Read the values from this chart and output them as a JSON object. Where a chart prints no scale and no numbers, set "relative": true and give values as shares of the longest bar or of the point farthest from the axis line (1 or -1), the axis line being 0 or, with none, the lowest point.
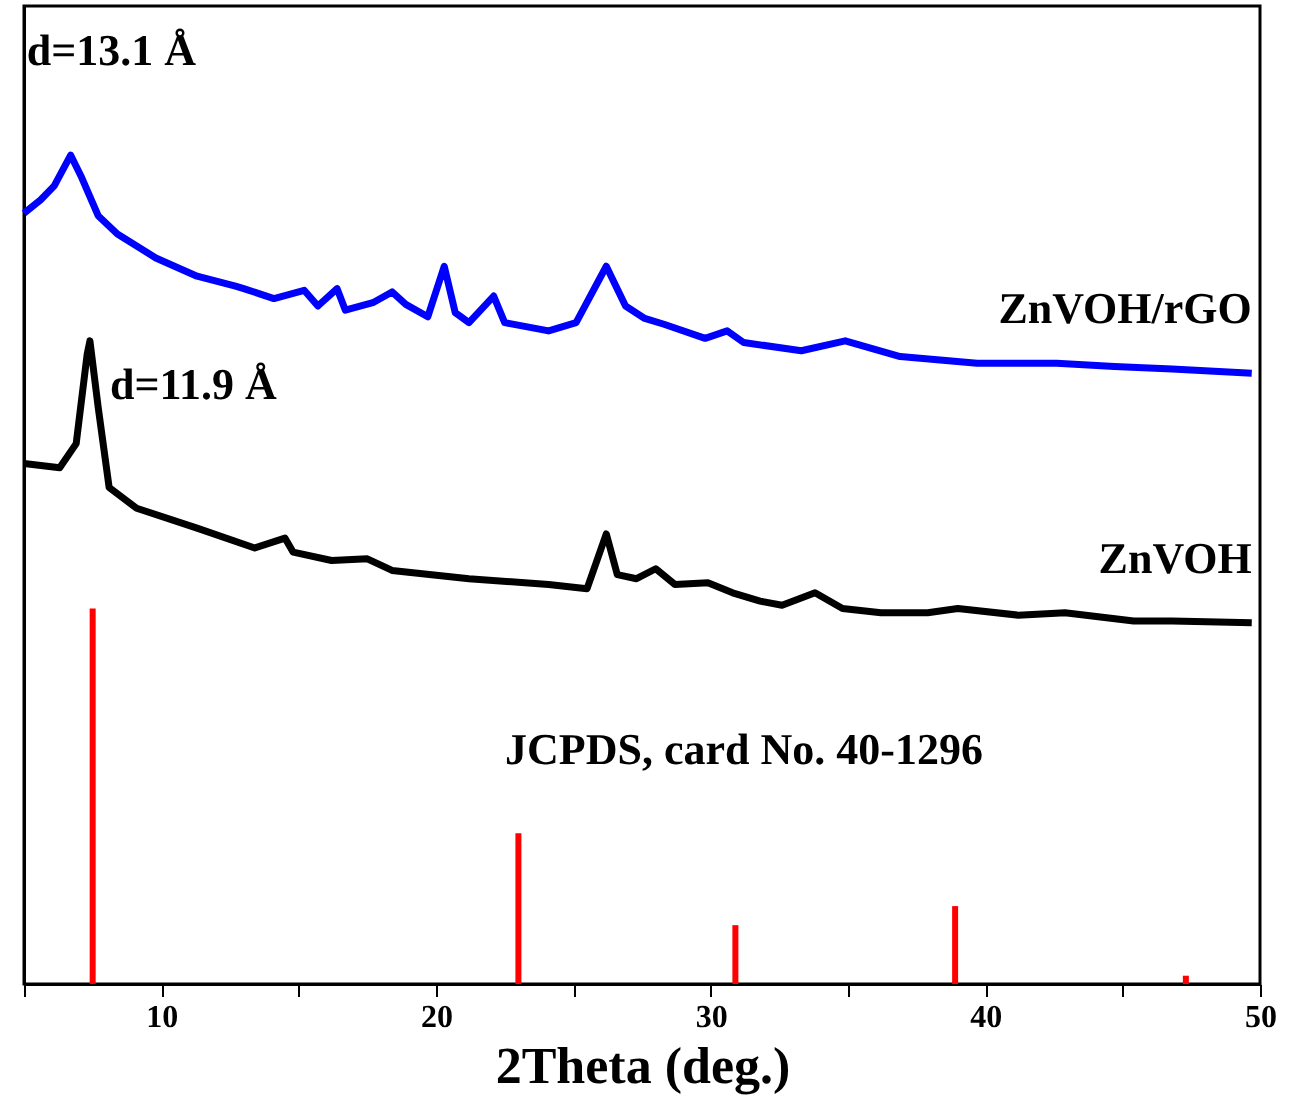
{
  "chart_data": {
    "type": "line",
    "xlabel": "2Theta (deg.)",
    "relative": true,
    "legend": false,
    "grid": false,
    "tick_labels": "x",
    "marker": "none",
    "line_style": "solid",
    "xlim": [
      5,
      50
    ],
    "xticks": [
      {
        "value": 5,
        "label": null
      },
      10,
      {
        "value": 15,
        "label": null
      },
      20,
      {
        "value": 25,
        "label": null
      },
      30,
      {
        "value": 35,
        "label": null
      },
      40,
      {
        "value": 45,
        "label": null
      },
      50
    ],
    "annotations": [
      {
        "text": "d=13.1 Å",
        "x": 6.7,
        "y": 1.0
      },
      {
        "text": "d=11.9 Å",
        "x": 7.4,
        "y": 0.776
      }
    ],
    "series": [
      {
        "name": "ZnVOH/rGO",
        "color": "#0000ff",
        "x": [
          5.0,
          5.6,
          6.1,
          6.7,
          7.1,
          7.7,
          8.4,
          9.8,
          11.3,
          12.7,
          13.0,
          14.1,
          15.2,
          15.7,
          16.4,
          16.7,
          17.7,
          18.4,
          18.9,
          19.7,
          20.3,
          20.7,
          21.2,
          22.1,
          22.5,
          24.1,
          25.1,
          26.2,
          26.9,
          27.6,
          28.3,
          29.8,
          30.6,
          31.2,
          33.3,
          34.9,
          36.9,
          39.7,
          42.6,
          44.7,
          46.8,
          49.7
        ],
        "values": [
          0.93,
          0.946,
          0.963,
          1.0,
          0.973,
          0.927,
          0.905,
          0.876,
          0.854,
          0.842,
          0.839,
          0.827,
          0.837,
          0.818,
          0.839,
          0.813,
          0.822,
          0.835,
          0.82,
          0.805,
          0.866,
          0.81,
          0.798,
          0.83,
          0.798,
          0.788,
          0.798,
          0.866,
          0.818,
          0.803,
          0.796,
          0.779,
          0.788,
          0.774,
          0.764,
          0.776,
          0.757,
          0.749,
          0.749,
          0.745,
          0.742,
          0.737
        ]
      },
      {
        "name": "ZnVOH",
        "color": "#000000",
        "x": [
          5.0,
          6.3,
          6.9,
          7.3,
          7.4,
          7.7,
          8.1,
          9.1,
          11.3,
          13.4,
          14.5,
          14.8,
          16.2,
          17.5,
          18.4,
          21.2,
          24.1,
          25.5,
          26.2,
          26.6,
          27.3,
          28.0,
          28.7,
          29.9,
          30.8,
          31.8,
          32.6,
          33.8,
          34.8,
          36.2,
          37.9,
          39.0,
          41.2,
          42.9,
          45.4,
          46.8,
          49.7
        ],
        "values": [
          0.628,
          0.623,
          0.652,
          0.76,
          0.776,
          0.696,
          0.599,
          0.574,
          0.55,
          0.526,
          0.538,
          0.521,
          0.511,
          0.513,
          0.499,
          0.489,
          0.482,
          0.477,
          0.543,
          0.494,
          0.489,
          0.501,
          0.482,
          0.484,
          0.472,
          0.462,
          0.457,
          0.472,
          0.453,
          0.448,
          0.448,
          0.453,
          0.445,
          0.448,
          0.438,
          0.438,
          0.436
        ]
      },
      {
        "name": "JCPDS, card No. 40-1296",
        "type": "bar",
        "color": "#ff0000",
        "x": [
          7.5,
          23.0,
          30.9,
          38.9,
          47.3
        ],
        "values": [
          0.453,
          0.182,
          0.071,
          0.094,
          0.01
        ]
      }
    ]
  }
}
